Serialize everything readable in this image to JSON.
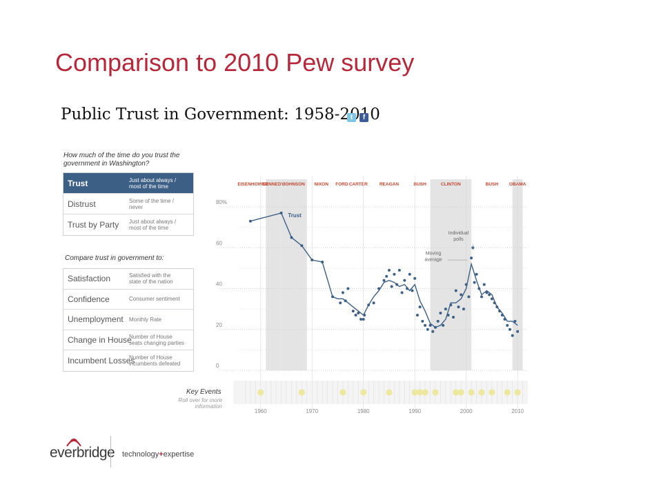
{
  "slide": {
    "title": "Comparison to 2010 Pew survey",
    "chart_heading": "Public Trust in Government: 1958-2010",
    "share_twitter": "t",
    "share_facebook": "f"
  },
  "sidebar": {
    "question": "How much of the time do you trust the government in Washington?",
    "trust_rows": [
      {
        "label": "Trust",
        "desc": "Just about always /\nmost of the time"
      },
      {
        "label": "Distrust",
        "desc": "Some of the time /\nnever"
      },
      {
        "label": "Trust by Party",
        "desc": "Just about always /\nmost of the time"
      }
    ],
    "compare_label": "Compare trust in government to:",
    "compare_rows": [
      {
        "label": "Satisfaction",
        "desc": "Satisfied with the\nstate of the nation"
      },
      {
        "label": "Confidence",
        "desc": "Consumer sentiment"
      },
      {
        "label": "Unemployment",
        "desc": "Monthly Rate"
      },
      {
        "label": "Change in House",
        "desc": "Number of House\nseats changing parties"
      },
      {
        "label": "Incumbent Losses",
        "desc": "Number of House\nincumbents defeated"
      }
    ]
  },
  "key_events": {
    "label": "Key Events",
    "rollover": "Roll over for more information",
    "years": [
      1960,
      1968,
      1976,
      1980,
      1985,
      1990,
      1991,
      1992,
      1994,
      1998,
      1999,
      2001,
      2003,
      2005,
      2008,
      2010
    ]
  },
  "footer": {
    "logo": "everbridge",
    "tagline_a": "technology",
    "tagline_plus": "+",
    "tagline_b": "expertise"
  },
  "colors": {
    "title": "#b5283a",
    "line": "#3c5f85",
    "band": "#e4e4e4",
    "event": "#ece8a0"
  },
  "chart_data": {
    "type": "line",
    "title": "Public Trust in Government: 1958-2010",
    "xlabel": "",
    "ylabel": "",
    "xlim": [
      1956,
      2012
    ],
    "ylim": [
      0,
      80
    ],
    "x_ticks": [
      1960,
      1970,
      1980,
      1990,
      2000,
      2010
    ],
    "y_ticks": [
      0,
      20,
      40,
      60,
      80
    ],
    "y_tick_labels": [
      "0",
      "20",
      "40",
      "60",
      "80%"
    ],
    "grid": true,
    "presidents": [
      {
        "name": "EISENHOWER",
        "start": 1956,
        "end": 1961,
        "shaded": false
      },
      {
        "name": "KENNEDY",
        "start": 1961,
        "end": 1963.9,
        "shaded": true
      },
      {
        "name": "JOHNSON",
        "start": 1963.9,
        "end": 1969,
        "shaded": true
      },
      {
        "name": "NIXON",
        "start": 1969,
        "end": 1974.6,
        "shaded": false
      },
      {
        "name": "FORD",
        "start": 1974.6,
        "end": 1977,
        "shaded": false
      },
      {
        "name": "CARTER",
        "start": 1977,
        "end": 1981,
        "shaded": false
      },
      {
        "name": "REAGAN",
        "start": 1981,
        "end": 1989,
        "shaded": false
      },
      {
        "name": "BUSH",
        "start": 1989,
        "end": 1993,
        "shaded": false
      },
      {
        "name": "CLINTON",
        "start": 1993,
        "end": 2001,
        "shaded": true
      },
      {
        "name": "BUSH",
        "start": 2001,
        "end": 2009,
        "shaded": false
      },
      {
        "name": "OBAMA",
        "start": 2009,
        "end": 2011,
        "shaded": true
      }
    ],
    "series": [
      {
        "name": "Trust",
        "kind": "moving average",
        "x": [
          1958,
          1964,
          1966,
          1968,
          1970,
          1972,
          1974,
          1975,
          1976,
          1977,
          1978,
          1979,
          1980,
          1981,
          1982,
          1983,
          1984,
          1985,
          1986,
          1987,
          1988,
          1989,
          1990,
          1991,
          1992,
          1993,
          1994,
          1995,
          1996,
          1997,
          1998,
          1999,
          2000,
          2001,
          2002,
          2003,
          2004,
          2005,
          2006,
          2007,
          2008,
          2009,
          2010
        ],
        "y": [
          73,
          77,
          65,
          61,
          54,
          53,
          36,
          35,
          35,
          33,
          31,
          29,
          27,
          32,
          36,
          39,
          43,
          44,
          43,
          41,
          42,
          39,
          42,
          34,
          29,
          23,
          21,
          22,
          25,
          33,
          33,
          35,
          40,
          52,
          44,
          37,
          39,
          37,
          31,
          28,
          24,
          24,
          22
        ]
      },
      {
        "name": "Individual polls",
        "kind": "points",
        "x": [
          1958,
          1964,
          1966,
          1968,
          1970,
          1972,
          1974,
          1975.5,
          1976,
          1976.5,
          1977,
          1978,
          1978.5,
          1979,
          1979.5,
          1980,
          1980.2,
          1981,
          1982,
          1983,
          1984,
          1984.5,
          1985,
          1985.5,
          1986,
          1986.5,
          1987,
          1987.5,
          1988,
          1988.5,
          1989,
          1989.5,
          1990,
          1990.5,
          1991,
          1991.5,
          1992,
          1992.5,
          1993,
          1993.5,
          1994,
          1994.5,
          1995,
          1995.5,
          1996,
          1996.5,
          1997,
          1997.5,
          1998,
          1998.5,
          1999,
          1999.5,
          2000,
          2000.5,
          2001,
          2001.3,
          2001.6,
          2002,
          2002.5,
          2003,
          2003.5,
          2004,
          2004.5,
          2005,
          2005.5,
          2006,
          2006.5,
          2007,
          2007.5,
          2008,
          2008.5,
          2009,
          2009.5,
          2010
        ],
        "y": [
          73,
          77,
          65,
          61,
          54,
          53,
          36,
          33,
          38,
          34,
          40,
          29,
          27,
          28,
          25,
          25,
          27,
          32,
          33,
          40,
          44,
          46,
          49,
          41,
          47,
          42,
          49,
          38,
          44,
          40,
          47,
          39,
          45,
          27,
          31,
          24,
          22,
          20,
          22,
          19,
          21,
          24,
          28,
          22,
          30,
          27,
          32,
          26,
          39,
          31,
          37,
          30,
          42,
          36,
          55,
          60,
          43,
          47,
          40,
          36,
          42,
          38,
          37,
          35,
          33,
          31,
          29,
          27,
          25,
          22,
          20,
          17,
          24,
          19
        ]
      }
    ],
    "annotations": [
      "Trust",
      "Individual polls",
      "Moving average"
    ]
  }
}
